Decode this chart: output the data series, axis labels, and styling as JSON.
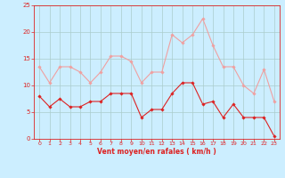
{
  "x": [
    0,
    1,
    2,
    3,
    4,
    5,
    6,
    7,
    8,
    9,
    10,
    11,
    12,
    13,
    14,
    15,
    16,
    17,
    18,
    19,
    20,
    21,
    22,
    23
  ],
  "wind_avg": [
    8,
    6,
    7.5,
    6,
    6,
    7,
    7,
    8.5,
    8.5,
    8.5,
    4,
    5.5,
    5.5,
    8.5,
    10.5,
    10.5,
    6.5,
    7,
    4,
    6.5,
    4,
    4,
    4,
    0.5
  ],
  "wind_gust": [
    13.5,
    10.5,
    13.5,
    13.5,
    12.5,
    10.5,
    12.5,
    15.5,
    15.5,
    14.5,
    10.5,
    12.5,
    12.5,
    19.5,
    18,
    19.5,
    22.5,
    17.5,
    13.5,
    13.5,
    10,
    8.5,
    13,
    7
  ],
  "avg_color": "#dd2222",
  "gust_color": "#f0a0a0",
  "bg_color": "#cceeff",
  "grid_color": "#aacccc",
  "axis_color": "#dd2222",
  "xlabel": "Vent moyen/en rafales ( km/h )",
  "ylim": [
    0,
    25
  ],
  "xlim": [
    -0.5,
    23.5
  ],
  "yticks": [
    0,
    5,
    10,
    15,
    20,
    25
  ],
  "xticks": [
    0,
    1,
    2,
    3,
    4,
    5,
    6,
    7,
    8,
    9,
    10,
    11,
    12,
    13,
    14,
    15,
    16,
    17,
    18,
    19,
    20,
    21,
    22,
    23
  ],
  "fig_width": 3.2,
  "fig_height": 2.0,
  "dpi": 100
}
